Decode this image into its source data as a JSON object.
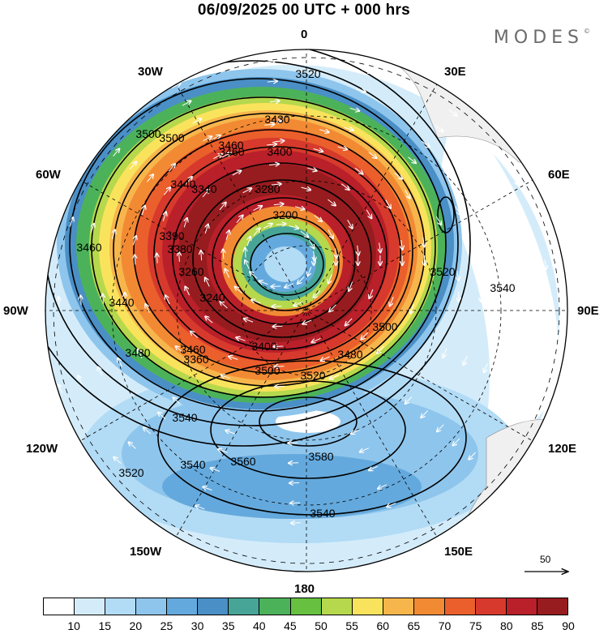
{
  "title": "06/09/2025  00 UTC  + 000 hrs",
  "brand": "MODES",
  "brand_mark": "©",
  "lon_labels": [
    "0",
    "30E",
    "60E",
    "90E",
    "120E",
    "150E",
    "180",
    "150W",
    "120W",
    "90W",
    "60W",
    "30W"
  ],
  "colorbar": {
    "colors": [
      "#ffffff",
      "#d4ecfa",
      "#b2dbf5",
      "#8ec5ec",
      "#64a9dd",
      "#4a8fc6",
      "#47a597",
      "#4cb25a",
      "#67c040",
      "#b6d84c",
      "#fae35c",
      "#f7b64c",
      "#f28a34",
      "#ea5f2c",
      "#d73a2c",
      "#b9202a",
      "#971c1f"
    ],
    "ticks": [
      "10",
      "15",
      "20",
      "25",
      "30",
      "35",
      "40",
      "45",
      "50",
      "55",
      "60",
      "65",
      "70",
      "75",
      "80",
      "85",
      "90"
    ]
  },
  "vector_scale": "50",
  "contour_labels": [
    "3520",
    "3500",
    "3430",
    "3460",
    "3400",
    "3440",
    "3340",
    "3280",
    "3200",
    "3390",
    "3380",
    "3260",
    "3240",
    "3360",
    "3460",
    "3440",
    "3460",
    "3500",
    "3480",
    "3460",
    "3400",
    "3500",
    "3520",
    "3480",
    "3500",
    "3520",
    "3540",
    "3540",
    "3580",
    "3560",
    "3540",
    "3520",
    "3540"
  ]
}
